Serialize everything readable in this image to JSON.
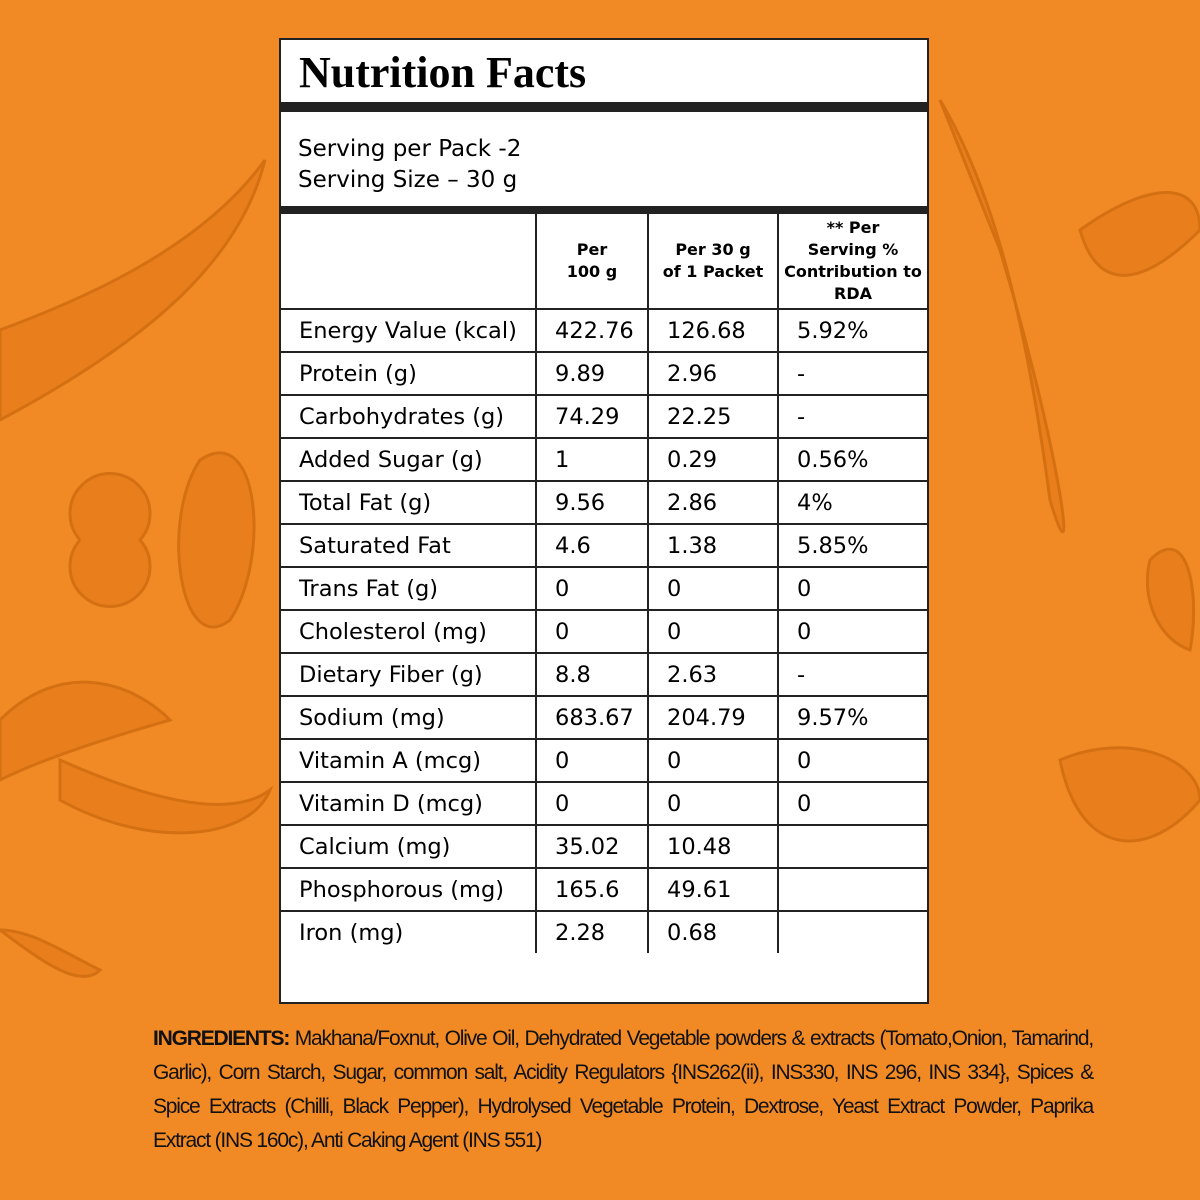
{
  "title": "Nutrition Facts",
  "serving": [
    "Serving per Pack -2",
    "Serving Size – 30 g"
  ],
  "table": {
    "header": [
      [
        "Per",
        "100 g"
      ],
      [
        "Per 30 g",
        "of 1 Packet"
      ],
      [
        "** Per",
        "Serving %",
        "Contribution to",
        "RDA"
      ]
    ],
    "rows": [
      [
        "Energy Value (kcal)",
        "422.76",
        "126.68",
        "5.92%"
      ],
      [
        "Protein (g)",
        "9.89",
        "2.96",
        "-"
      ],
      [
        "Carbohydrates (g)",
        "74.29",
        "22.25",
        "-"
      ],
      [
        "Added Sugar (g)",
        "1",
        "0.29",
        "0.56%"
      ],
      [
        "Total Fat (g)",
        "9.56",
        "2.86",
        "4%"
      ],
      [
        "Saturated Fat",
        "4.6",
        "1.38",
        "5.85%"
      ],
      [
        "Trans Fat (g)",
        "0",
        "0",
        "0"
      ],
      [
        "Cholesterol (mg)",
        "0",
        "0",
        "0"
      ],
      [
        "Dietary Fiber (g)",
        "8.8",
        "2.63",
        "-"
      ],
      [
        "Sodium (mg)",
        "683.67",
        "204.79",
        "9.57%"
      ],
      [
        "Vitamin A (mcg)",
        "0",
        "0",
        "0"
      ],
      [
        "Vitamin D (mcg)",
        "0",
        "0",
        "0"
      ],
      [
        "Calcium (mg)",
        "35.02",
        "10.48"
      ],
      [
        "Phosphorous (mg)",
        "165.6",
        "49.61"
      ],
      [
        "Iron (mg)",
        "2.28",
        "0.68"
      ]
    ]
  },
  "ingredients": {
    "label": "INGREDIENTS:",
    "text": "Makhana/Foxnut, Olive Oil, Dehydrated Vegetable powders & extracts (Tomato,Onion, Tamarind, Garlic), Corn Starch, Sugar, common salt, Acidity Regulators {INS262(ii), INS330, INS 296, INS 334}, Spices & Spice Extracts (Chilli, Black Pepper), Hydrolysed Vegetable Protein, Dextrose, Yeast Extract Powder, Paprika Extract (INS 160c), Anti Caking Agent (INS 551)"
  }
}
